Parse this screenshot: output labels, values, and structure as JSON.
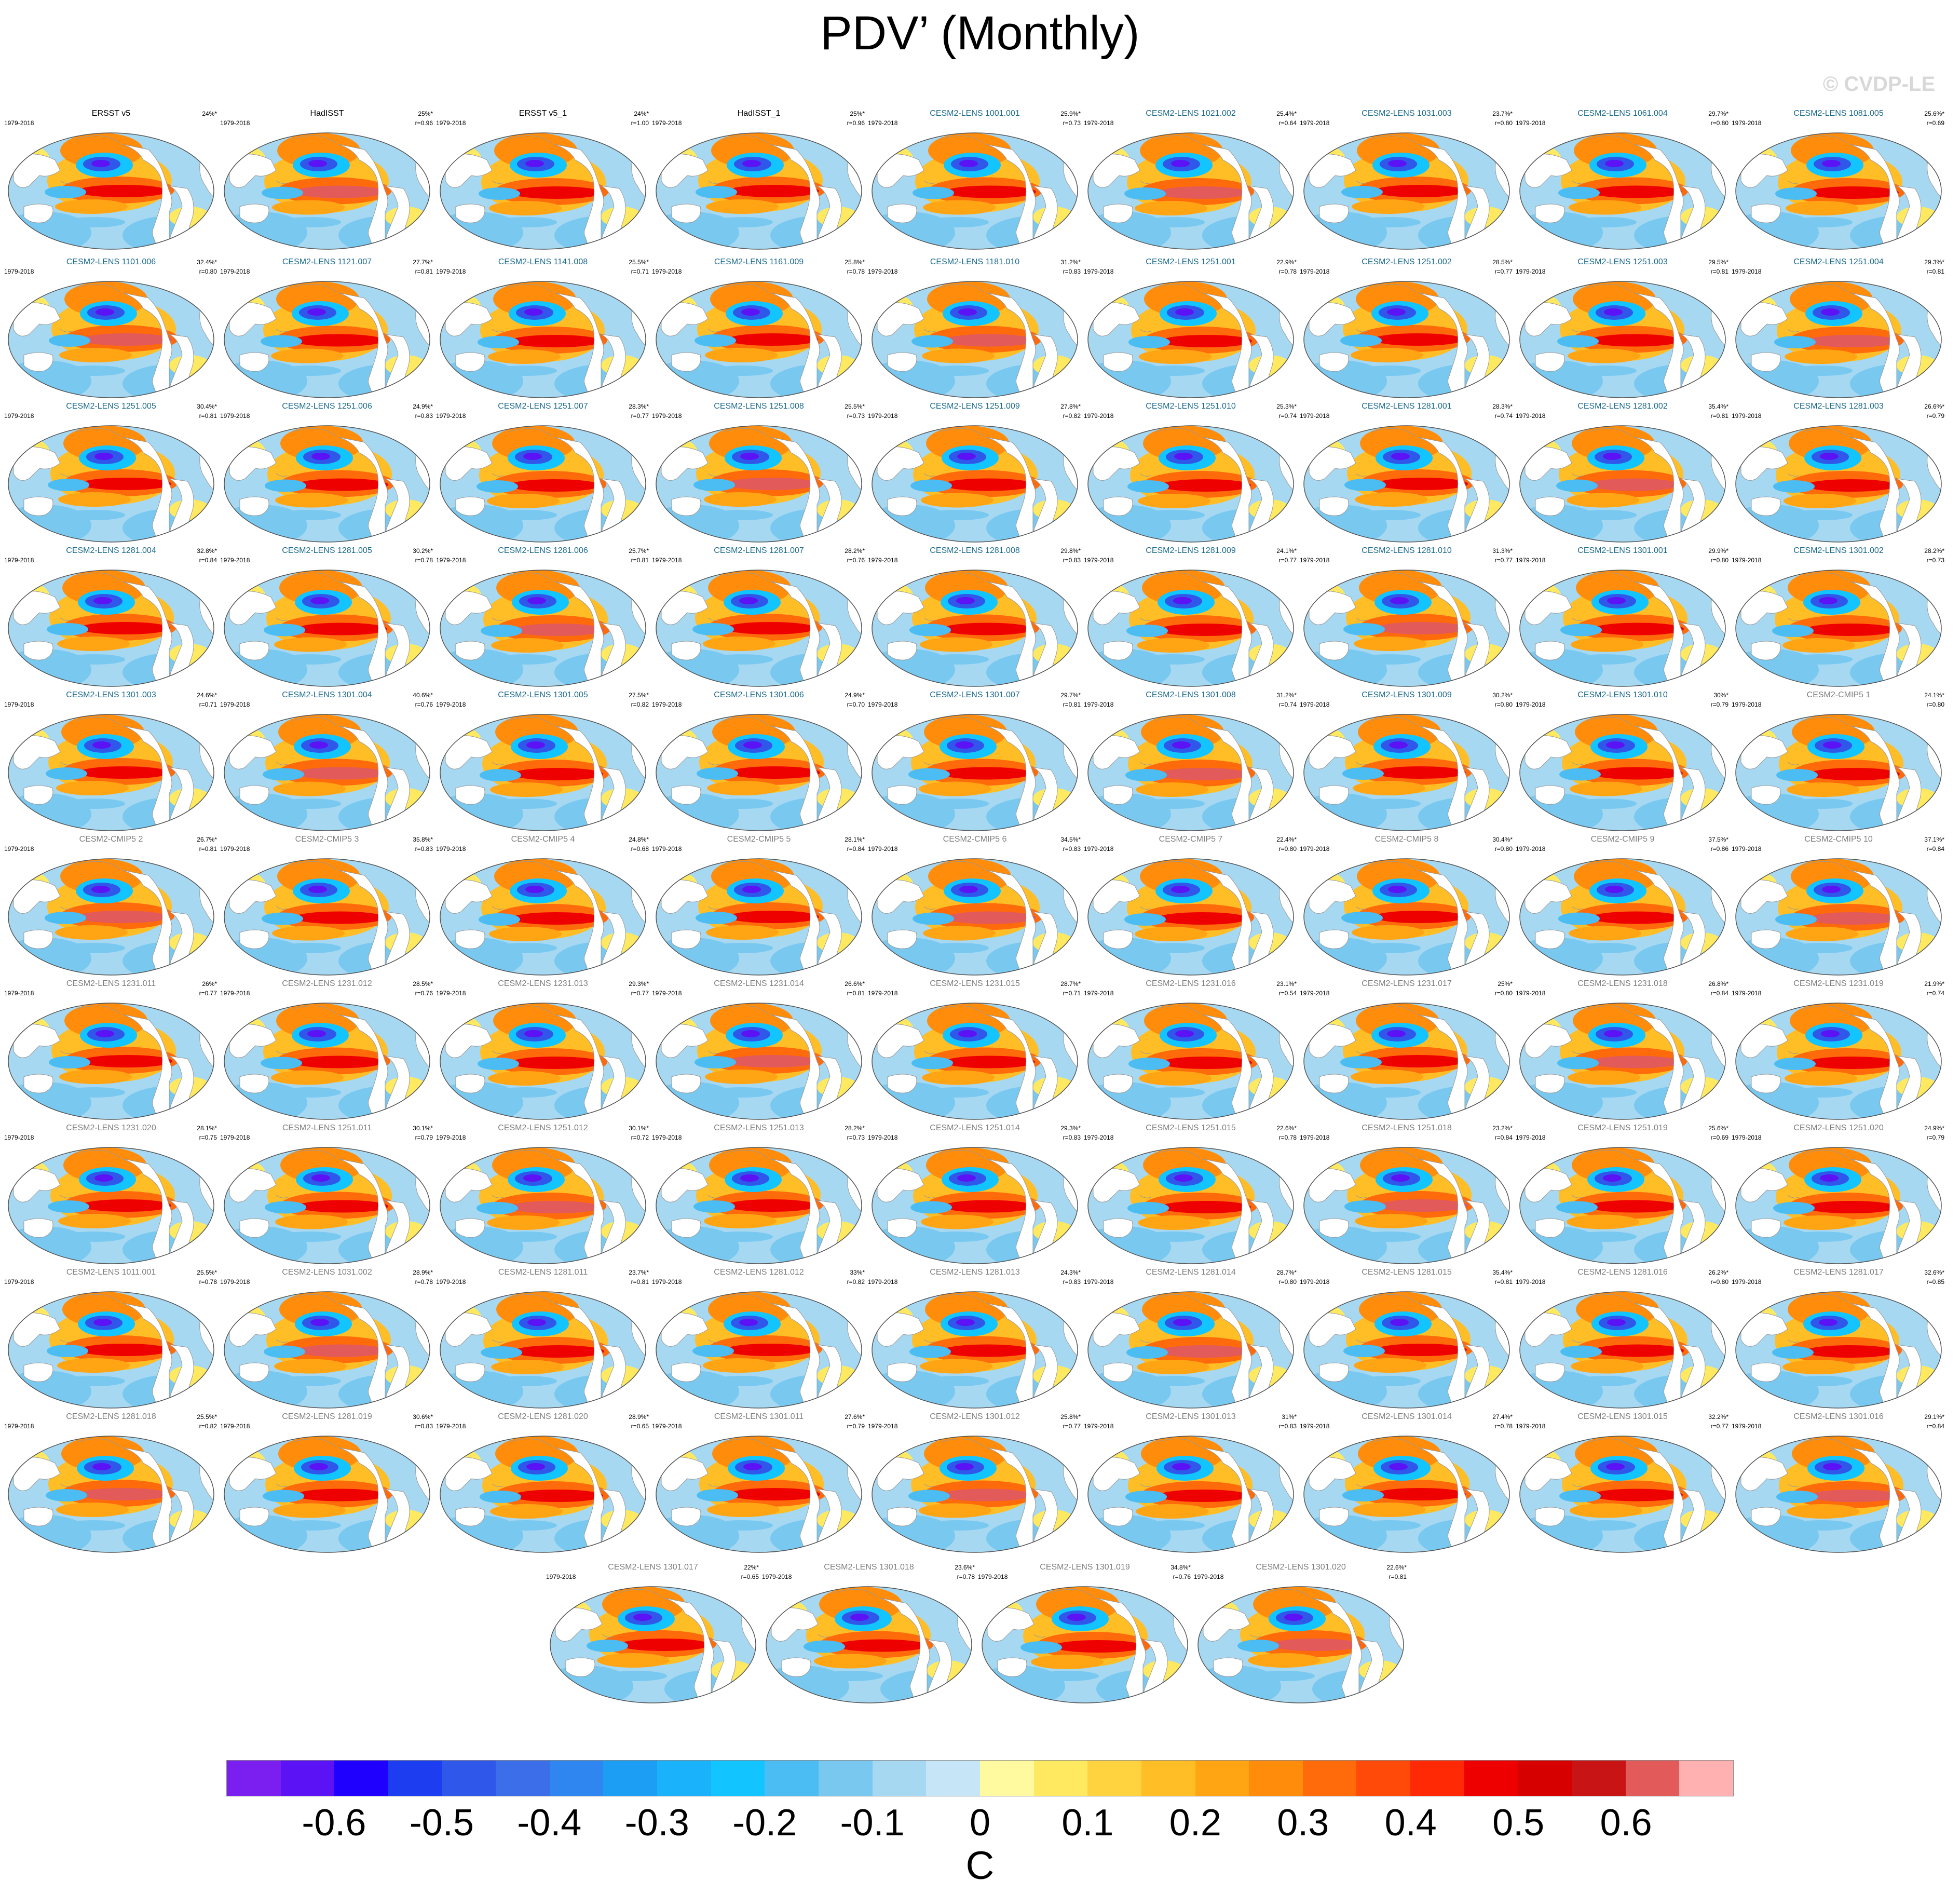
{
  "title": "PDV’ (Monthly)",
  "credit": "© CVDP-LE",
  "period": "1979-2018",
  "colorbar": {
    "units": "C",
    "colors": [
      "#7a1ff0",
      "#5b12f5",
      "#1f00ff",
      "#1c3ef0",
      "#2f58ea",
      "#3b6ee8",
      "#2f86f0",
      "#1c9ef5",
      "#1ab2fa",
      "#12c4ff",
      "#4bbdf2",
      "#78c8f0",
      "#a6d8f2",
      "#c6e6f7",
      "#fff9a0",
      "#ffe960",
      "#ffd340",
      "#ffbd26",
      "#ffa514",
      "#ff8c0a",
      "#ff6a0a",
      "#ff4a0a",
      "#ff2a05",
      "#ef0000",
      "#d60000",
      "#c81414",
      "#e25a5a",
      "#ffb0b0"
    ],
    "tick_labels": [
      "-0.6",
      "-0.5",
      "-0.4",
      "-0.3",
      "-0.2",
      "-0.1",
      "0",
      "0.1",
      "0.2",
      "0.3",
      "0.4",
      "0.5",
      "0.6"
    ],
    "tick_values": [
      -0.6,
      -0.5,
      -0.4,
      -0.3,
      -0.2,
      -0.1,
      0,
      0.1,
      0.2,
      0.3,
      0.4,
      0.5,
      0.6
    ],
    "range": [
      -0.7,
      0.7
    ]
  },
  "panels": [
    {
      "title": "ERSST v5",
      "pct": "24%*",
      "r": "",
      "style": "obs"
    },
    {
      "title": "HadISST",
      "pct": "25%*",
      "r": "r=0.96",
      "style": "obs"
    },
    {
      "title": "ERSST v5_1",
      "pct": "24%*",
      "r": "r=1.00",
      "style": "obs"
    },
    {
      "title": "HadISST_1",
      "pct": "25%*",
      "r": "r=0.96",
      "style": "obs"
    },
    {
      "title": "CESM2-LENS 1001.001",
      "pct": "25.9%*",
      "r": "r=0.73",
      "style": "lens"
    },
    {
      "title": "CESM2-LENS 1021.002",
      "pct": "25.4%*",
      "r": "r=0.64",
      "style": "lens"
    },
    {
      "title": "CESM2-LENS 1031.003",
      "pct": "23.7%*",
      "r": "r=0.80",
      "style": "lens"
    },
    {
      "title": "CESM2-LENS 1061.004",
      "pct": "29.7%*",
      "r": "r=0.80",
      "style": "lens"
    },
    {
      "title": "CESM2-LENS 1081.005",
      "pct": "25.6%*",
      "r": "r=0.69",
      "style": "lens"
    },
    {
      "title": "CESM2-LENS 1101.006",
      "pct": "32.4%*",
      "r": "r=0.80",
      "style": "lens"
    },
    {
      "title": "CESM2-LENS 1121.007",
      "pct": "27.7%*",
      "r": "r=0.81",
      "style": "lens"
    },
    {
      "title": "CESM2-LENS 1141.008",
      "pct": "25.5%*",
      "r": "r=0.71",
      "style": "lens"
    },
    {
      "title": "CESM2-LENS 1161.009",
      "pct": "25.8%*",
      "r": "r=0.78",
      "style": "lens"
    },
    {
      "title": "CESM2-LENS 1181.010",
      "pct": "31.2%*",
      "r": "r=0.83",
      "style": "lens"
    },
    {
      "title": "CESM2-LENS 1251.001",
      "pct": "22.9%*",
      "r": "r=0.78",
      "style": "lens"
    },
    {
      "title": "CESM2-LENS 1251.002",
      "pct": "28.5%*",
      "r": "r=0.77",
      "style": "lens"
    },
    {
      "title": "CESM2-LENS 1251.003",
      "pct": "29.5%*",
      "r": "r=0.81",
      "style": "lens"
    },
    {
      "title": "CESM2-LENS 1251.004",
      "pct": "29.3%*",
      "r": "r=0.81",
      "style": "lens"
    },
    {
      "title": "CESM2-LENS 1251.005",
      "pct": "30.4%*",
      "r": "r=0.81",
      "style": "lens"
    },
    {
      "title": "CESM2-LENS 1251.006",
      "pct": "24.9%*",
      "r": "r=0.83",
      "style": "lens"
    },
    {
      "title": "CESM2-LENS 1251.007",
      "pct": "28.3%*",
      "r": "r=0.77",
      "style": "lens"
    },
    {
      "title": "CESM2-LENS 1251.008",
      "pct": "25.5%*",
      "r": "r=0.73",
      "style": "lens"
    },
    {
      "title": "CESM2-LENS 1251.009",
      "pct": "27.8%*",
      "r": "r=0.82",
      "style": "lens"
    },
    {
      "title": "CESM2-LENS 1251.010",
      "pct": "25.3%*",
      "r": "r=0.74",
      "style": "lens"
    },
    {
      "title": "CESM2-LENS 1281.001",
      "pct": "28.3%*",
      "r": "r=0.74",
      "style": "lens"
    },
    {
      "title": "CESM2-LENS 1281.002",
      "pct": "35.4%*",
      "r": "r=0.81",
      "style": "lens"
    },
    {
      "title": "CESM2-LENS 1281.003",
      "pct": "26.6%*",
      "r": "r=0.79",
      "style": "lens"
    },
    {
      "title": "CESM2-LENS 1281.004",
      "pct": "32.8%*",
      "r": "r=0.84",
      "style": "lens"
    },
    {
      "title": "CESM2-LENS 1281.005",
      "pct": "30.2%*",
      "r": "r=0.78",
      "style": "lens"
    },
    {
      "title": "CESM2-LENS 1281.006",
      "pct": "25.7%*",
      "r": "r=0.81",
      "style": "lens"
    },
    {
      "title": "CESM2-LENS 1281.007",
      "pct": "28.2%*",
      "r": "r=0.76",
      "style": "lens"
    },
    {
      "title": "CESM2-LENS 1281.008",
      "pct": "29.8%*",
      "r": "r=0.83",
      "style": "lens"
    },
    {
      "title": "CESM2-LENS 1281.009",
      "pct": "24.1%*",
      "r": "r=0.77",
      "style": "lens"
    },
    {
      "title": "CESM2-LENS 1281.010",
      "pct": "31.3%*",
      "r": "r=0.77",
      "style": "lens"
    },
    {
      "title": "CESM2-LENS 1301.001",
      "pct": "29.9%*",
      "r": "r=0.80",
      "style": "lens"
    },
    {
      "title": "CESM2-LENS 1301.002",
      "pct": "28.2%*",
      "r": "r=0.73",
      "style": "lens"
    },
    {
      "title": "CESM2-LENS 1301.003",
      "pct": "24.6%*",
      "r": "r=0.71",
      "style": "lens"
    },
    {
      "title": "CESM2-LENS 1301.004",
      "pct": "40.6%*",
      "r": "r=0.76",
      "style": "lens"
    },
    {
      "title": "CESM2-LENS 1301.005",
      "pct": "27.5%*",
      "r": "r=0.82",
      "style": "lens"
    },
    {
      "title": "CESM2-LENS 1301.006",
      "pct": "24.9%*",
      "r": "r=0.70",
      "style": "lens"
    },
    {
      "title": "CESM2-LENS 1301.007",
      "pct": "29.7%*",
      "r": "r=0.81",
      "style": "lens"
    },
    {
      "title": "CESM2-LENS 1301.008",
      "pct": "31.2%*",
      "r": "r=0.74",
      "style": "lens"
    },
    {
      "title": "CESM2-LENS 1301.009",
      "pct": "30.2%*",
      "r": "r=0.80",
      "style": "lens"
    },
    {
      "title": "CESM2-LENS 1301.010",
      "pct": "30%*",
      "r": "r=0.79",
      "style": "lens"
    },
    {
      "title": "CESM2-CMIP5 1",
      "pct": "24.1%*",
      "r": "r=0.80",
      "style": "grey"
    },
    {
      "title": "CESM2-CMIP5 2",
      "pct": "26.7%*",
      "r": "r=0.81",
      "style": "grey"
    },
    {
      "title": "CESM2-CMIP5 3",
      "pct": "35.8%*",
      "r": "r=0.83",
      "style": "grey"
    },
    {
      "title": "CESM2-CMIP5 4",
      "pct": "24.8%*",
      "r": "r=0.68",
      "style": "grey"
    },
    {
      "title": "CESM2-CMIP5 5",
      "pct": "28.1%*",
      "r": "r=0.84",
      "style": "grey"
    },
    {
      "title": "CESM2-CMIP5 6",
      "pct": "34.5%*",
      "r": "r=0.83",
      "style": "grey"
    },
    {
      "title": "CESM2-CMIP5 7",
      "pct": "22.4%*",
      "r": "r=0.80",
      "style": "grey"
    },
    {
      "title": "CESM2-CMIP5 8",
      "pct": "30.4%*",
      "r": "r=0.80",
      "style": "grey"
    },
    {
      "title": "CESM2-CMIP5 9",
      "pct": "37.5%*",
      "r": "r=0.86",
      "style": "grey"
    },
    {
      "title": "CESM2-CMIP5 10",
      "pct": "37.1%*",
      "r": "r=0.84",
      "style": "grey"
    },
    {
      "title": "CESM2-LENS 1231.011",
      "pct": "26%*",
      "r": "r=0.77",
      "style": "grey"
    },
    {
      "title": "CESM2-LENS 1231.012",
      "pct": "28.5%*",
      "r": "r=0.76",
      "style": "grey"
    },
    {
      "title": "CESM2-LENS 1231.013",
      "pct": "29.3%*",
      "r": "r=0.77",
      "style": "grey"
    },
    {
      "title": "CESM2-LENS 1231.014",
      "pct": "26.6%*",
      "r": "r=0.81",
      "style": "grey"
    },
    {
      "title": "CESM2-LENS 1231.015",
      "pct": "28.7%*",
      "r": "r=0.71",
      "style": "grey"
    },
    {
      "title": "CESM2-LENS 1231.016",
      "pct": "23.1%*",
      "r": "r=0.54",
      "style": "grey"
    },
    {
      "title": "CESM2-LENS 1231.017",
      "pct": "25%*",
      "r": "r=0.80",
      "style": "grey"
    },
    {
      "title": "CESM2-LENS 1231.018",
      "pct": "26.8%*",
      "r": "r=0.84",
      "style": "grey"
    },
    {
      "title": "CESM2-LENS 1231.019",
      "pct": "21.9%*",
      "r": "r=0.74",
      "style": "grey"
    },
    {
      "title": "CESM2-LENS 1231.020",
      "pct": "28.1%*",
      "r": "r=0.75",
      "style": "grey"
    },
    {
      "title": "CESM2-LENS 1251.011",
      "pct": "30.1%*",
      "r": "r=0.79",
      "style": "grey"
    },
    {
      "title": "CESM2-LENS 1251.012",
      "pct": "30.1%*",
      "r": "r=0.72",
      "style": "grey"
    },
    {
      "title": "CESM2-LENS 1251.013",
      "pct": "28.2%*",
      "r": "r=0.73",
      "style": "grey"
    },
    {
      "title": "CESM2-LENS 1251.014",
      "pct": "29.3%*",
      "r": "r=0.83",
      "style": "grey"
    },
    {
      "title": "CESM2-LENS 1251.015",
      "pct": "22.6%*",
      "r": "r=0.78",
      "style": "grey"
    },
    {
      "title": "CESM2-LENS 1251.018",
      "pct": "23.2%*",
      "r": "r=0.84",
      "style": "grey"
    },
    {
      "title": "CESM2-LENS 1251.019",
      "pct": "25.6%*",
      "r": "r=0.69",
      "style": "grey"
    },
    {
      "title": "CESM2-LENS 1251.020",
      "pct": "24.9%*",
      "r": "r=0.79",
      "style": "grey"
    },
    {
      "title": "CESM2-LENS 1011.001",
      "pct": "25.5%*",
      "r": "r=0.78",
      "style": "grey"
    },
    {
      "title": "CESM2-LENS 1031.002",
      "pct": "28.9%*",
      "r": "r=0.78",
      "style": "grey"
    },
    {
      "title": "CESM2-LENS 1281.011",
      "pct": "23.7%*",
      "r": "r=0.81",
      "style": "grey"
    },
    {
      "title": "CESM2-LENS 1281.012",
      "pct": "33%*",
      "r": "r=0.82",
      "style": "grey"
    },
    {
      "title": "CESM2-LENS 1281.013",
      "pct": "24.3%*",
      "r": "r=0.83",
      "style": "grey"
    },
    {
      "title": "CESM2-LENS 1281.014",
      "pct": "28.7%*",
      "r": "r=0.80",
      "style": "grey"
    },
    {
      "title": "CESM2-LENS 1281.015",
      "pct": "35.4%*",
      "r": "r=0.81",
      "style": "grey"
    },
    {
      "title": "CESM2-LENS 1281.016",
      "pct": "26.2%*",
      "r": "r=0.80",
      "style": "grey"
    },
    {
      "title": "CESM2-LENS 1281.017",
      "pct": "32.6%*",
      "r": "r=0.85",
      "style": "grey"
    },
    {
      "title": "CESM2-LENS 1281.018",
      "pct": "25.5%*",
      "r": "r=0.82",
      "style": "grey"
    },
    {
      "title": "CESM2-LENS 1281.019",
      "pct": "30.6%*",
      "r": "r=0.83",
      "style": "grey"
    },
    {
      "title": "CESM2-LENS 1281.020",
      "pct": "28.9%*",
      "r": "r=0.65",
      "style": "grey"
    },
    {
      "title": "CESM2-LENS 1301.011",
      "pct": "27.6%*",
      "r": "r=0.79",
      "style": "grey"
    },
    {
      "title": "CESM2-LENS 1301.012",
      "pct": "25.8%*",
      "r": "r=0.77",
      "style": "grey"
    },
    {
      "title": "CESM2-LENS 1301.013",
      "pct": "31%*",
      "r": "r=0.83",
      "style": "grey"
    },
    {
      "title": "CESM2-LENS 1301.014",
      "pct": "27.4%*",
      "r": "r=0.78",
      "style": "grey"
    },
    {
      "title": "CESM2-LENS 1301.015",
      "pct": "32.2%*",
      "r": "r=0.77",
      "style": "grey"
    },
    {
      "title": "CESM2-LENS 1301.016",
      "pct": "29.1%*",
      "r": "r=0.84",
      "style": "grey"
    },
    {
      "title": "CESM2-LENS 1301.017",
      "pct": "22%*",
      "r": "r=0.65",
      "style": "grey"
    },
    {
      "title": "CESM2-LENS 1301.018",
      "pct": "23.6%*",
      "r": "r=0.78",
      "style": "grey"
    },
    {
      "title": "CESM2-LENS 1301.019",
      "pct": "34.8%*",
      "r": "r=0.76",
      "style": "grey"
    },
    {
      "title": "CESM2-LENS 1301.020",
      "pct": "22.6%*",
      "r": "r=0.81",
      "style": "grey"
    }
  ]
}
